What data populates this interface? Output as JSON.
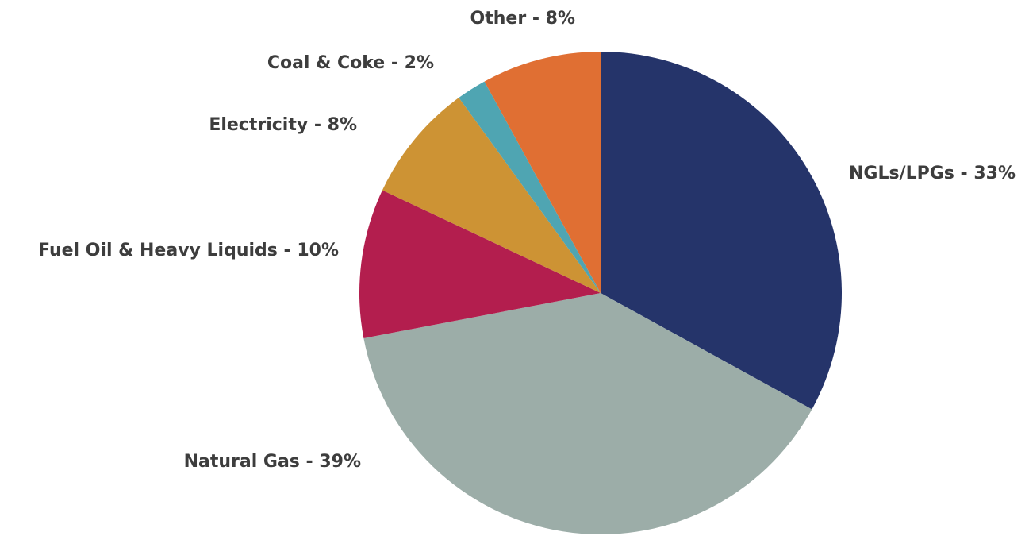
{
  "chart_data": {
    "type": "pie",
    "start_angle_deg": 0,
    "direction": "clockwise",
    "slices": [
      {
        "label": "NGLs/LPGs - 33%",
        "category": "NGLs/LPGs",
        "value": 33,
        "color": "#25346a"
      },
      {
        "label": "Natural Gas - 39%",
        "category": "Natural Gas",
        "value": 39,
        "color": "#9cada8"
      },
      {
        "label": "Fuel Oil & Heavy Liquids - 10%",
        "category": "Fuel Oil & Heavy Liquids",
        "value": 10,
        "color": "#b31e4e"
      },
      {
        "label": "Electricity - 8%",
        "category": "Electricity",
        "value": 8,
        "color": "#cd9334"
      },
      {
        "label": "Coal & Coke - 2%",
        "category": "Coal & Coke",
        "value": 2,
        "color": "#4fa5b2"
      },
      {
        "label": "Other - 8%",
        "category": "Other",
        "value": 8,
        "color": "#e06f33"
      }
    ]
  }
}
